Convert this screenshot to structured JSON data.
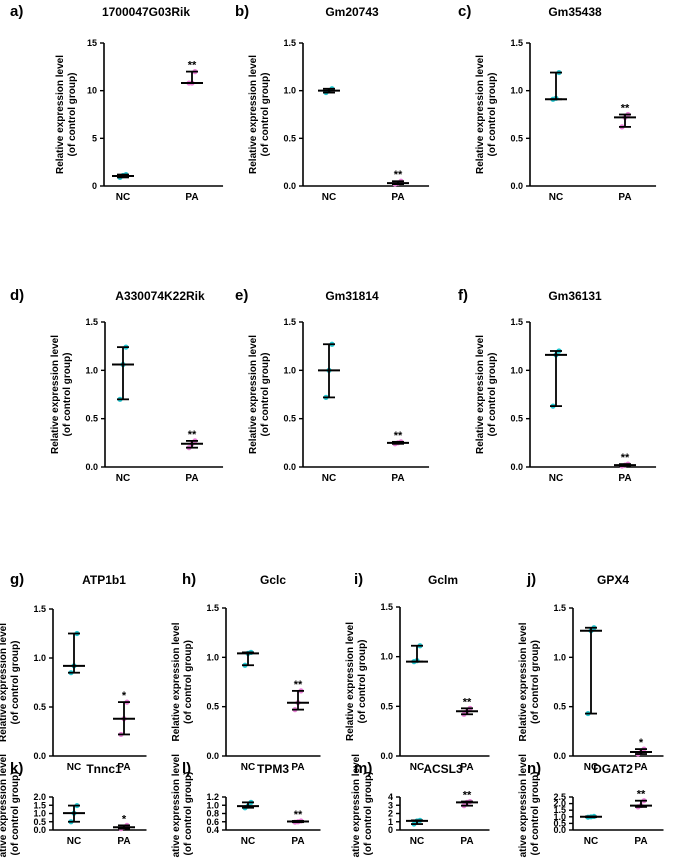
{
  "figure": {
    "ylabel_line1": "Relative expression level",
    "ylabel_line2": "(of control group)"
  },
  "colors": {
    "nc": "#22c8d2",
    "pa": "#e87fd6",
    "line": "#000000"
  },
  "chart_data": [
    {
      "label": "a)",
      "title": "1700047G03Rik",
      "type": "scatter",
      "categories": [
        "NC",
        "PA"
      ],
      "ylim": [
        0,
        15
      ],
      "yticks": [
        0,
        5,
        10,
        15
      ],
      "tick_labels": [
        "0",
        "5",
        "10",
        "15"
      ],
      "series": [
        {
          "name": "NC",
          "points": [
            0.9,
            1.1,
            1.2
          ],
          "mean": 1.05,
          "min": 0.9,
          "max": 1.2,
          "sig": ""
        },
        {
          "name": "PA",
          "points": [
            10.8,
            10.8,
            12.0
          ],
          "mean": 10.8,
          "min": 10.8,
          "max": 12.0,
          "sig": "**"
        }
      ]
    },
    {
      "label": "b)",
      "title": "Gm20743",
      "type": "scatter",
      "categories": [
        "NC",
        "PA"
      ],
      "ylim": [
        0,
        1.5
      ],
      "yticks": [
        0,
        0.5,
        1.0,
        1.5
      ],
      "tick_labels": [
        "0.0",
        "0.5",
        "1.0",
        "1.5"
      ],
      "series": [
        {
          "name": "NC",
          "points": [
            0.98,
            1.0,
            1.02
          ],
          "mean": 1.0,
          "min": 0.98,
          "max": 1.02,
          "sig": ""
        },
        {
          "name": "PA",
          "points": [
            0.02,
            0.03,
            0.05
          ],
          "mean": 0.03,
          "min": 0.02,
          "max": 0.05,
          "sig": "**"
        }
      ]
    },
    {
      "label": "c)",
      "title": "Gm35438",
      "type": "scatter",
      "categories": [
        "NC",
        "PA"
      ],
      "ylim": [
        0,
        1.5
      ],
      "yticks": [
        0,
        0.5,
        1.0,
        1.5
      ],
      "tick_labels": [
        "0.0",
        "0.5",
        "1.0",
        "1.5"
      ],
      "series": [
        {
          "name": "NC",
          "points": [
            0.91,
            0.92,
            1.19
          ],
          "mean": 0.91,
          "min": 0.91,
          "max": 1.19,
          "sig": ""
        },
        {
          "name": "PA",
          "points": [
            0.62,
            0.72,
            0.75
          ],
          "mean": 0.72,
          "min": 0.62,
          "max": 0.75,
          "sig": "**"
        }
      ]
    },
    {
      "label": "d)",
      "title": "A330074K22Rik",
      "type": "scatter",
      "categories": [
        "NC",
        "PA"
      ],
      "ylim": [
        0,
        1.5
      ],
      "yticks": [
        0,
        0.5,
        1.0,
        1.5
      ],
      "tick_labels": [
        "0.0",
        "0.5",
        "1.0",
        "1.5"
      ],
      "series": [
        {
          "name": "NC",
          "points": [
            0.7,
            1.06,
            1.24
          ],
          "mean": 1.06,
          "min": 0.7,
          "max": 1.24,
          "sig": ""
        },
        {
          "name": "PA",
          "points": [
            0.2,
            0.24,
            0.27
          ],
          "mean": 0.24,
          "min": 0.2,
          "max": 0.27,
          "sig": "**"
        }
      ]
    },
    {
      "label": "e)",
      "title": "Gm31814",
      "type": "scatter",
      "categories": [
        "NC",
        "PA"
      ],
      "ylim": [
        0,
        1.5
      ],
      "yticks": [
        0,
        0.5,
        1.0,
        1.5
      ],
      "tick_labels": [
        "0.0",
        "0.5",
        "1.0",
        "1.5"
      ],
      "series": [
        {
          "name": "NC",
          "points": [
            0.72,
            1.0,
            1.27
          ],
          "mean": 1.0,
          "min": 0.72,
          "max": 1.27,
          "sig": ""
        },
        {
          "name": "PA",
          "points": [
            0.24,
            0.25,
            0.26
          ],
          "mean": 0.25,
          "min": 0.24,
          "max": 0.26,
          "sig": "**"
        }
      ]
    },
    {
      "label": "f)",
      "title": "Gm36131",
      "type": "scatter",
      "categories": [
        "NC",
        "PA"
      ],
      "ylim": [
        0,
        1.5
      ],
      "yticks": [
        0,
        0.5,
        1.0,
        1.5
      ],
      "tick_labels": [
        "0.0",
        "0.5",
        "1.0",
        "1.5"
      ],
      "series": [
        {
          "name": "NC",
          "points": [
            0.63,
            1.16,
            1.2
          ],
          "mean": 1.16,
          "min": 0.63,
          "max": 1.2,
          "sig": ""
        },
        {
          "name": "PA",
          "points": [
            0.01,
            0.02,
            0.03
          ],
          "mean": 0.02,
          "min": 0.01,
          "max": 0.03,
          "sig": "**"
        }
      ]
    },
    {
      "label": "g)",
      "title": "ATP1b1",
      "type": "scatter",
      "categories": [
        "NC",
        "PA"
      ],
      "ylim": [
        0,
        1.5
      ],
      "yticks": [
        0,
        0.5,
        1.0,
        1.5
      ],
      "tick_labels": [
        "0.0",
        "0.5",
        "1.0",
        "1.5"
      ],
      "series": [
        {
          "name": "NC",
          "points": [
            0.85,
            0.92,
            1.25
          ],
          "mean": 0.92,
          "min": 0.85,
          "max": 1.25,
          "sig": ""
        },
        {
          "name": "PA",
          "points": [
            0.22,
            0.38,
            0.55
          ],
          "mean": 0.38,
          "min": 0.22,
          "max": 0.55,
          "sig": "*"
        }
      ]
    },
    {
      "label": "h)",
      "title": "Gclc",
      "type": "scatter",
      "categories": [
        "NC",
        "PA"
      ],
      "ylim": [
        0,
        1.5
      ],
      "yticks": [
        0,
        0.5,
        1.0,
        1.5
      ],
      "tick_labels": [
        "0.0",
        "0.5",
        "1.0",
        "1.5"
      ],
      "series": [
        {
          "name": "NC",
          "points": [
            0.92,
            1.04,
            1.05
          ],
          "mean": 1.04,
          "min": 0.92,
          "max": 1.05,
          "sig": ""
        },
        {
          "name": "PA",
          "points": [
            0.47,
            0.54,
            0.66
          ],
          "mean": 0.54,
          "min": 0.47,
          "max": 0.66,
          "sig": "**"
        }
      ]
    },
    {
      "label": "i)",
      "title": "Gclm",
      "type": "scatter",
      "categories": [
        "NC",
        "PA"
      ],
      "ylim": [
        0,
        1.5
      ],
      "yticks": [
        0,
        0.5,
        1.0,
        1.5
      ],
      "tick_labels": [
        "0.0",
        "0.5",
        "1.0",
        "1.5"
      ],
      "series": [
        {
          "name": "NC",
          "points": [
            0.95,
            0.96,
            1.11
          ],
          "mean": 0.95,
          "min": 0.95,
          "max": 1.11,
          "sig": ""
        },
        {
          "name": "PA",
          "points": [
            0.42,
            0.45,
            0.48
          ],
          "mean": 0.45,
          "min": 0.42,
          "max": 0.48,
          "sig": "**"
        }
      ]
    },
    {
      "label": "j)",
      "title": "GPX4",
      "type": "scatter",
      "categories": [
        "NC",
        "PA"
      ],
      "ylim": [
        0,
        1.5
      ],
      "yticks": [
        0,
        0.5,
        1.0,
        1.5
      ],
      "tick_labels": [
        "0.0",
        "0.5",
        "1.0",
        "1.5"
      ],
      "series": [
        {
          "name": "NC",
          "points": [
            0.43,
            1.27,
            1.3
          ],
          "mean": 1.27,
          "min": 0.43,
          "max": 1.3,
          "sig": ""
        },
        {
          "name": "PA",
          "points": [
            0.02,
            0.04,
            0.07
          ],
          "mean": 0.04,
          "min": 0.02,
          "max": 0.07,
          "sig": "*"
        }
      ]
    },
    {
      "label": "k)",
      "title": "Tnnc1",
      "type": "scatter",
      "categories": [
        "NC",
        "PA"
      ],
      "ylim": [
        0,
        2.0
      ],
      "yticks": [
        0,
        0.5,
        1.0,
        1.5,
        2.0
      ],
      "tick_labels": [
        "0.0",
        "0.5",
        "1.0",
        "1.5",
        "2.0"
      ],
      "series": [
        {
          "name": "NC",
          "points": [
            0.5,
            1.02,
            1.48
          ],
          "mean": 1.02,
          "min": 0.5,
          "max": 1.48,
          "sig": ""
        },
        {
          "name": "PA",
          "points": [
            0.08,
            0.17,
            0.28
          ],
          "mean": 0.17,
          "min": 0.08,
          "max": 0.28,
          "sig": "*"
        }
      ]
    },
    {
      "label": "l)",
      "title": "TPM3",
      "type": "scatter",
      "categories": [
        "NC",
        "PA"
      ],
      "ylim": [
        0.4,
        1.2
      ],
      "yticks": [
        0.4,
        0.6,
        0.8,
        1.0,
        1.2
      ],
      "tick_labels": [
        "0.4",
        "0.6",
        "0.8",
        "1.0",
        "1.2"
      ],
      "series": [
        {
          "name": "NC",
          "points": [
            0.94,
            0.98,
            1.07
          ],
          "mean": 0.98,
          "min": 0.94,
          "max": 1.07,
          "sig": ""
        },
        {
          "name": "PA",
          "points": [
            0.59,
            0.6,
            0.62
          ],
          "mean": 0.605,
          "min": 0.59,
          "max": 0.62,
          "sig": "**"
        }
      ]
    },
    {
      "label": "m)",
      "title": "ACSL3",
      "type": "scatter",
      "categories": [
        "NC",
        "PA"
      ],
      "ylim": [
        0,
        4
      ],
      "yticks": [
        0,
        1,
        2,
        3,
        4
      ],
      "tick_labels": [
        "0",
        "1",
        "2",
        "3",
        "4"
      ],
      "series": [
        {
          "name": "NC",
          "points": [
            0.72,
            1.1,
            1.17
          ],
          "mean": 1.1,
          "min": 0.72,
          "max": 1.17,
          "sig": ""
        },
        {
          "name": "PA",
          "points": [
            2.95,
            3.35,
            3.45
          ],
          "mean": 3.35,
          "min": 2.95,
          "max": 3.45,
          "sig": "**"
        }
      ]
    },
    {
      "label": "n)",
      "title": "DGAT2",
      "type": "scatter",
      "categories": [
        "NC",
        "PA"
      ],
      "ylim": [
        0,
        2.5
      ],
      "yticks": [
        0,
        0.5,
        1.0,
        1.5,
        2.0,
        2.5
      ],
      "tick_labels": [
        "0.0",
        "0.5",
        "1.0",
        "1.5",
        "2.0",
        "2.5"
      ],
      "series": [
        {
          "name": "NC",
          "points": [
            0.97,
            1.0,
            1.03
          ],
          "mean": 1.0,
          "min": 0.97,
          "max": 1.03,
          "sig": ""
        },
        {
          "name": "PA",
          "points": [
            1.75,
            1.85,
            2.22
          ],
          "mean": 1.85,
          "min": 1.75,
          "max": 2.22,
          "sig": "**"
        }
      ]
    }
  ]
}
